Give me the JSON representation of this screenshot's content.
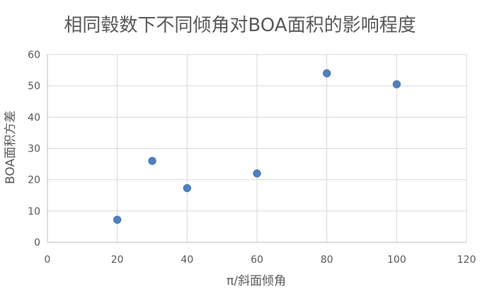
{
  "chart_data": {
    "type": "scatter",
    "title": "相同毂数下不同倾角对BOA面积的影响程度",
    "xlabel": "π/斜面倾角",
    "ylabel": "BOA面积方差",
    "xlim": [
      0,
      120
    ],
    "ylim": [
      0,
      60
    ],
    "xticks": [
      0,
      20,
      40,
      60,
      80,
      100,
      120
    ],
    "yticks": [
      0,
      10,
      20,
      30,
      40,
      50,
      60
    ],
    "grid": true,
    "legend": "none",
    "color": "#4f7fbf",
    "points": [
      {
        "x": 20,
        "y": 7.2
      },
      {
        "x": 30,
        "y": 26
      },
      {
        "x": 40,
        "y": 17.3
      },
      {
        "x": 60,
        "y": 22
      },
      {
        "x": 80,
        "y": 54
      },
      {
        "x": 100,
        "y": 50.5
      }
    ]
  }
}
